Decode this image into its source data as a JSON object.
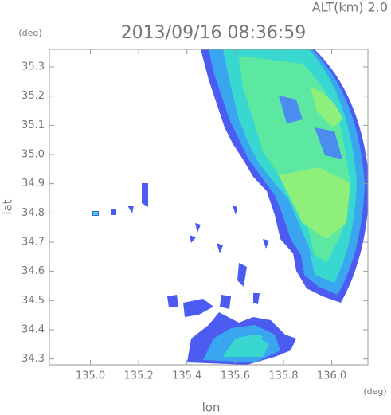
{
  "chart_data": {
    "type": "radar-map",
    "altitude_label": "ALT(km) 2.0",
    "title": "2013/09/16 08:36:59",
    "x_unit": "(deg)",
    "y_unit": "(deg)",
    "xlabel": "lon",
    "ylabel": "lat",
    "xlim": [
      134.83,
      136.15
    ],
    "ylim": [
      34.28,
      35.36
    ],
    "xticks": [
      {
        "value": 135.0,
        "label": "135.0"
      },
      135.2,
      135.4,
      135.6,
      135.8,
      {
        "value": 136.0,
        "label": "136.0"
      }
    ],
    "yticks": [
      34.3,
      34.4,
      34.5,
      34.6,
      34.7,
      34.8,
      34.9,
      {
        "value": 35.0,
        "label": "35.0"
      },
      35.1,
      35.2,
      35.3
    ]
  }
}
